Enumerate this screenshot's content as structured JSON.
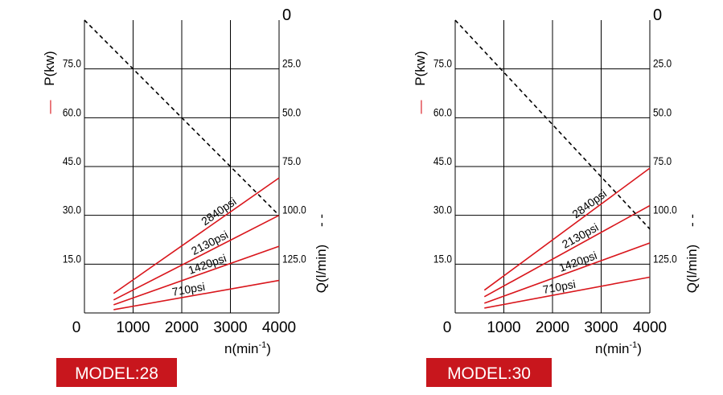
{
  "charts": [
    {
      "model_label": "MODEL:28",
      "chart_data": {
        "type": "line",
        "x_label": "n(min",
        "x_label_sup": "-1",
        "x_label_end": ")",
        "y_left_label": "P(kw)",
        "y_left_marker": "—",
        "y_right_label": "Q(l/min)",
        "y_right_marker": "- -",
        "x_ticks": [
          "0",
          "1000",
          "2000",
          "3000",
          "4000"
        ],
        "y_left_ticks": [
          "15.0",
          "30.0",
          "45.0",
          "60.0",
          "75.0"
        ],
        "y_right_ticks": [
          "0",
          "25.0",
          "50.0",
          "75.0",
          "100.0",
          "125.0"
        ],
        "xlim": [
          0,
          4000
        ],
        "ylim_left": [
          0,
          90
        ],
        "ylim_right": [
          150,
          0
        ],
        "series": [
          {
            "name": "2840psi",
            "axis": "left",
            "style": "solid",
            "color": "#d9161c",
            "x": [
              600,
              4000
            ],
            "y": [
              6,
              41.5
            ]
          },
          {
            "name": "2130psi",
            "axis": "left",
            "style": "solid",
            "color": "#d9161c",
            "x": [
              600,
              4000
            ],
            "y": [
              4,
              30
            ]
          },
          {
            "name": "1420psi",
            "axis": "left",
            "style": "solid",
            "color": "#d9161c",
            "x": [
              600,
              4000
            ],
            "y": [
              2.5,
              20.5
            ]
          },
          {
            "name": "710psi",
            "axis": "left",
            "style": "solid",
            "color": "#d9161c",
            "x": [
              600,
              4000
            ],
            "y": [
              1,
              10
            ]
          }
        ],
        "flow_line": {
          "axis": "right",
          "style": "dashed",
          "color": "#000000",
          "x": [
            0,
            4000
          ],
          "y": [
            0,
            100
          ]
        }
      }
    },
    {
      "model_label": "MODEL:30",
      "chart_data": {
        "type": "line",
        "x_label": "n(min",
        "x_label_sup": "-1",
        "x_label_end": ")",
        "y_left_label": "P(kw)",
        "y_left_marker": "—",
        "y_right_label": "Q(l/min)",
        "y_right_marker": "- -",
        "x_ticks": [
          "0",
          "1000",
          "2000",
          "3000",
          "4000"
        ],
        "y_left_ticks": [
          "15.0",
          "30.0",
          "45.0",
          "60.0",
          "75.0"
        ],
        "y_right_ticks": [
          "0",
          "25.0",
          "50.0",
          "75.0",
          "100.0",
          "125.0"
        ],
        "xlim": [
          0,
          4000
        ],
        "ylim_left": [
          0,
          90
        ],
        "ylim_right": [
          150,
          0
        ],
        "series": [
          {
            "name": "2840psi",
            "axis": "left",
            "style": "solid",
            "color": "#d9161c",
            "x": [
              600,
              4000
            ],
            "y": [
              7,
              44.5
            ]
          },
          {
            "name": "2130psi",
            "axis": "left",
            "style": "solid",
            "color": "#d9161c",
            "x": [
              600,
              4000
            ],
            "y": [
              5,
              33
            ]
          },
          {
            "name": "1420psi",
            "axis": "left",
            "style": "solid",
            "color": "#d9161c",
            "x": [
              600,
              4000
            ],
            "y": [
              3,
              21.5
            ]
          },
          {
            "name": "710psi",
            "axis": "left",
            "style": "solid",
            "color": "#d9161c",
            "x": [
              600,
              4000
            ],
            "y": [
              1.5,
              11
            ]
          }
        ],
        "flow_line": {
          "axis": "right",
          "style": "dashed",
          "color": "#000000",
          "x": [
            0,
            4000
          ],
          "y": [
            0,
            107
          ]
        }
      }
    }
  ]
}
